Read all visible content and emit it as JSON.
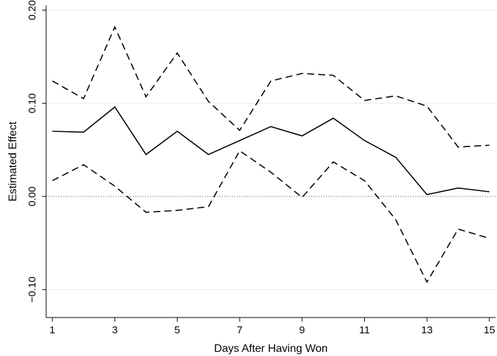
{
  "chart_data": {
    "type": "line",
    "title": "",
    "xlabel": "Days After Having Won",
    "ylabel": "Estimated Effect",
    "x": [
      1,
      2,
      3,
      4,
      5,
      6,
      7,
      8,
      9,
      10,
      11,
      12,
      13,
      14,
      15
    ],
    "xlim": [
      0.8,
      15.2
    ],
    "ylim": [
      -0.13,
      0.205
    ],
    "x_ticks": [
      1,
      3,
      5,
      7,
      9,
      11,
      13,
      15
    ],
    "x_tick_labels": [
      "1",
      "3",
      "5",
      "7",
      "9",
      "11",
      "13",
      "15"
    ],
    "y_ticks": [
      -0.1,
      0,
      0.1,
      0.2
    ],
    "y_tick_labels": [
      "−0.10",
      "0.00",
      "0.10",
      "0.20"
    ],
    "grid": "horizontal",
    "reference_line": {
      "y": 0,
      "style": "dotted"
    },
    "series": [
      {
        "style": "solid",
        "values": [
          0.07,
          0.069,
          0.096,
          0.045,
          0.07,
          0.045,
          0.06,
          0.075,
          0.065,
          0.084,
          0.06,
          0.042,
          0.002,
          0.009,
          0.005
        ]
      },
      {
        "style": "dashed",
        "values": [
          0.124,
          0.105,
          0.182,
          0.107,
          0.154,
          0.102,
          0.071,
          0.124,
          0.132,
          0.13,
          0.103,
          0.108,
          0.097,
          0.053,
          0.055
        ]
      },
      {
        "style": "dashed",
        "values": [
          0.017,
          0.034,
          0.011,
          -0.017,
          -0.015,
          -0.011,
          0.049,
          0.026,
          -0.001,
          0.037,
          0.017,
          -0.025,
          -0.092,
          -0.035,
          -0.045
        ]
      }
    ]
  }
}
